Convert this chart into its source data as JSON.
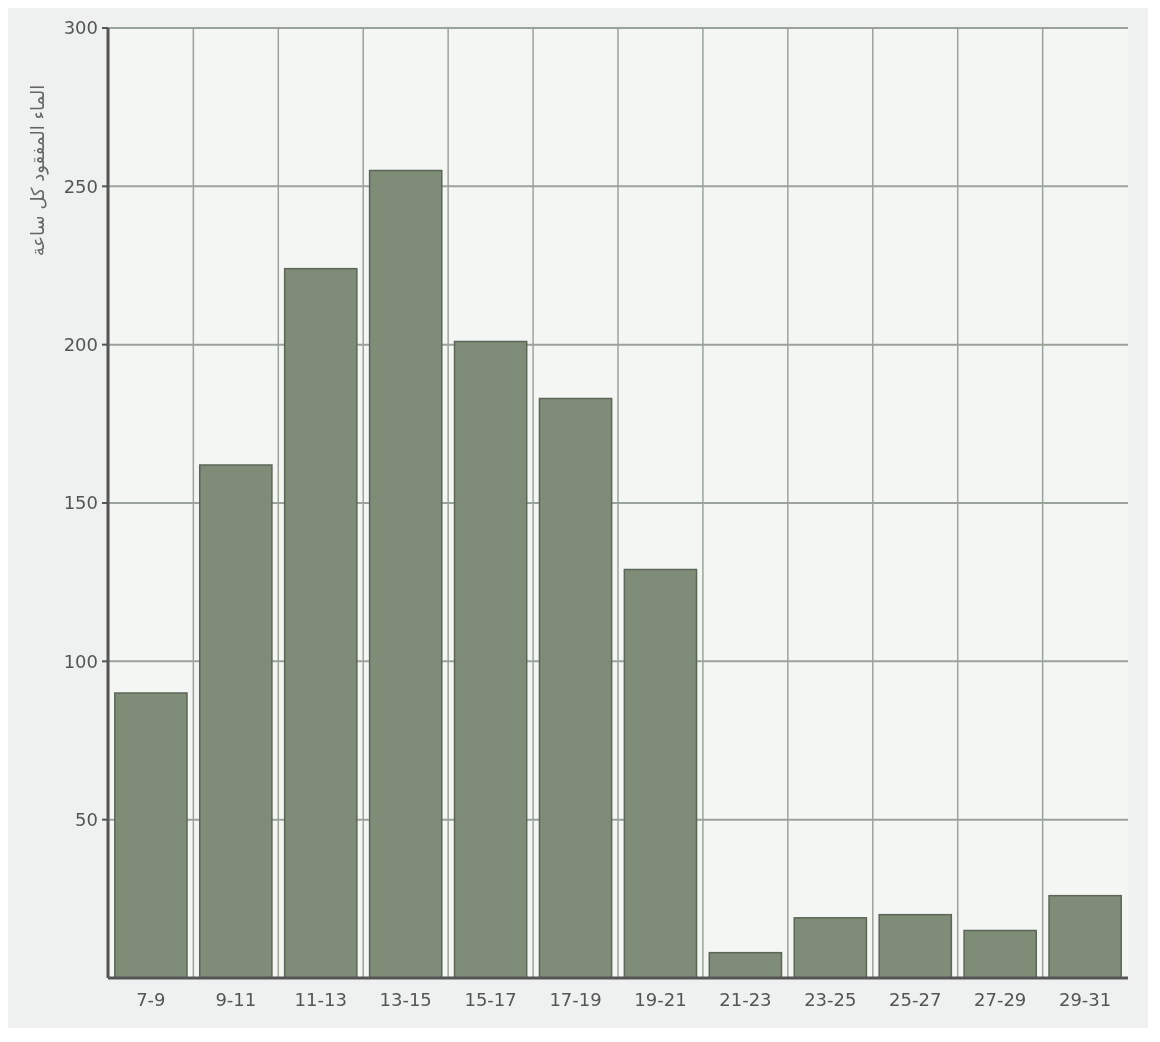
{
  "chart_data": {
    "type": "bar",
    "ylabel": "الماء المفقود كل ساعة",
    "categories": [
      "7-9",
      "9-11",
      "11-13",
      "13-15",
      "15-17",
      "17-19",
      "19-21",
      "21-23",
      "23-25",
      "25-27",
      "27-29",
      "29-31"
    ],
    "values": [
      90,
      162,
      224,
      255,
      201,
      183,
      129,
      8,
      19,
      20,
      15,
      26
    ],
    "color": "#7f8c78",
    "ylim": [
      0,
      300
    ],
    "yticks": [
      50,
      100,
      150,
      200,
      250,
      300
    ],
    "grid": true
  }
}
